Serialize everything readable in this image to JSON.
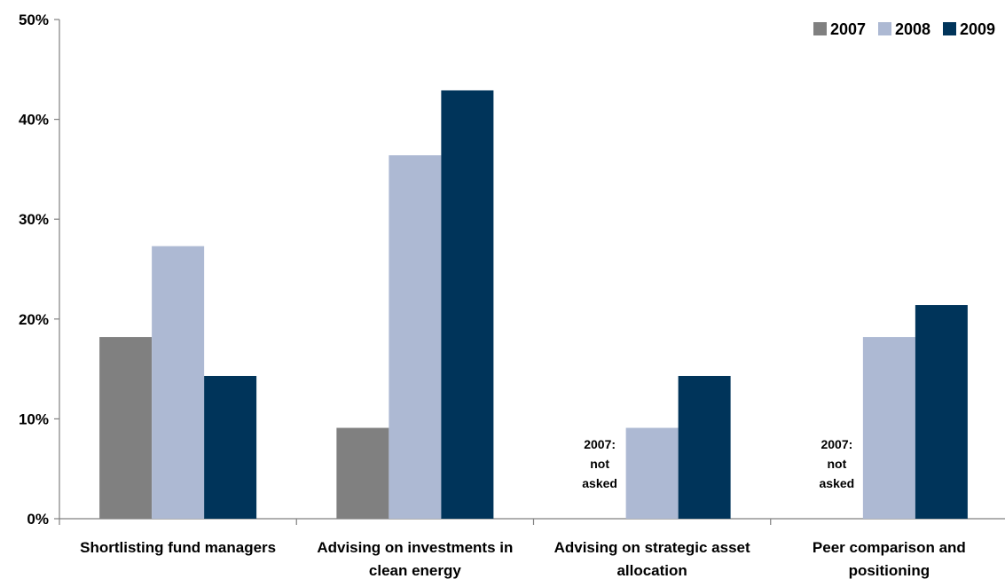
{
  "chart_data": {
    "type": "bar",
    "title": "",
    "xlabel": "",
    "ylabel": "",
    "ylim": [
      0,
      50
    ],
    "y_ticks": [
      "0%",
      "10%",
      "20%",
      "30%",
      "40%",
      "50%"
    ],
    "y_tick_values": [
      0,
      10,
      20,
      30,
      40,
      50
    ],
    "grid": false,
    "legend_position": "top-right",
    "categories": [
      [
        "Shortlisting fund managers"
      ],
      [
        "Advising on investments in",
        "clean energy"
      ],
      [
        "Advising on strategic asset",
        "allocation"
      ],
      [
        "Peer comparison and",
        "positioning"
      ]
    ],
    "series": [
      {
        "name": "2007",
        "color": "#808080",
        "values": [
          18.2,
          9.1,
          null,
          null
        ]
      },
      {
        "name": "2008",
        "color": "#adb9d3",
        "values": [
          27.3,
          36.4,
          9.1,
          18.2
        ]
      },
      {
        "name": "2009",
        "color": "#00345a",
        "values": [
          14.3,
          42.9,
          14.3,
          21.4
        ]
      }
    ],
    "annotations": [
      {
        "category_index": 2,
        "lines": [
          "2007:",
          "not",
          "asked"
        ]
      },
      {
        "category_index": 3,
        "lines": [
          "2007:",
          "not",
          "asked"
        ]
      }
    ]
  }
}
